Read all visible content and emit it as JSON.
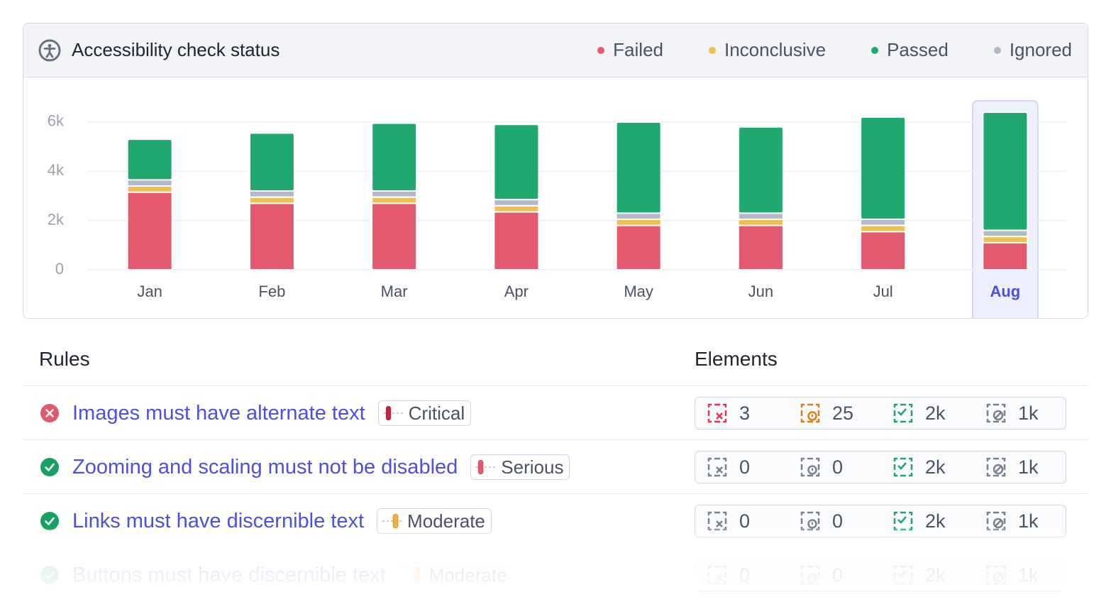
{
  "chart_data": {
    "type": "bar",
    "stacked": true,
    "title": "Accessibility check status",
    "categories": [
      "Jan",
      "Feb",
      "Mar",
      "Apr",
      "May",
      "Jun",
      "Jul",
      "Aug"
    ],
    "series": [
      {
        "name": "Failed",
        "color": "#e35a70",
        "values": [
          3150,
          2700,
          2700,
          2350,
          1800,
          1800,
          1550,
          1100
        ]
      },
      {
        "name": "Inconclusive",
        "color": "#f0c04e",
        "values": [
          250,
          250,
          250,
          250,
          250,
          250,
          250,
          250
        ]
      },
      {
        "name": "Passed",
        "color": "#20a96f",
        "values": [
          1650,
          2350,
          2750,
          3050,
          3700,
          3500,
          4150,
          4800
        ]
      },
      {
        "name": "Ignored",
        "color": "#b4b9ca",
        "values": [
          250,
          250,
          250,
          250,
          250,
          250,
          250,
          250
        ]
      }
    ],
    "ylim": [
      0,
      6600
    ],
    "yticks": [
      0,
      {
        "value": 2000,
        "label": "2k"
      },
      {
        "value": 4000,
        "label": "4k"
      },
      {
        "value": 6000,
        "label": "6k"
      }
    ],
    "grid": true,
    "legend": "top-right",
    "highlight": 7
  },
  "rules": {
    "headers": [
      "Rules",
      "Elements"
    ],
    "rows": [
      {
        "status": "failed",
        "name": "Images must have alternate text",
        "severity": "Critical",
        "elements": [
          "3",
          "25",
          "2k",
          "1k"
        ]
      },
      {
        "status": "passed",
        "name": "Zooming and scaling must not be disabled",
        "severity": "Serious",
        "elements": [
          "0",
          "0",
          "2k",
          "1k"
        ]
      },
      {
        "status": "passed",
        "name": "Links must have discernible text",
        "severity": "Moderate",
        "elements": [
          "0",
          "0",
          "2k",
          "1k"
        ]
      },
      {
        "status": "passed",
        "name": "Buttons must have discernible text",
        "severity": "Moderate",
        "elements": [
          "0",
          "0",
          "2k",
          "1k"
        ]
      }
    ]
  }
}
